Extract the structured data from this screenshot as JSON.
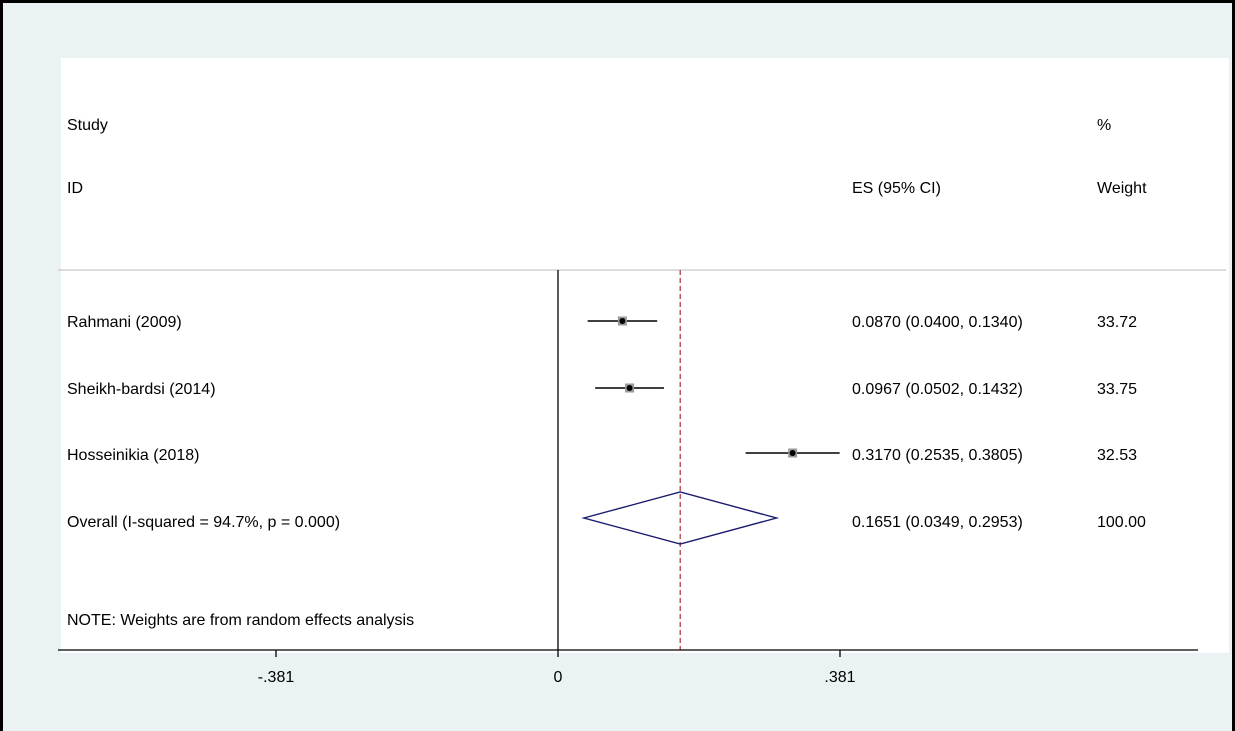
{
  "header": {
    "study_label": "Study",
    "id_label": "ID",
    "es_label": "ES (95% CI)",
    "pct_label": "%",
    "weight_label": "Weight"
  },
  "note": "NOTE: Weights are from random effects analysis",
  "colors": {
    "background": "#eaf2f3",
    "plot_background": "#ffffff",
    "reference_line": "#a83232",
    "diamond": "#1a1a6e",
    "ci_line": "#000000",
    "point": "#555555"
  },
  "chart_data": {
    "type": "forest",
    "xlim": [
      -0.6,
      1.133
    ],
    "xticks": [
      {
        "value": -0.381,
        "label": "-.381"
      },
      {
        "value": 0,
        "label": "0"
      },
      {
        "value": 0.381,
        "label": ".381"
      }
    ],
    "null_line": 0,
    "overall_line": 0.1651,
    "studies": [
      {
        "name": "Rahmani (2009)",
        "es": 0.087,
        "lo": 0.04,
        "hi": 0.134,
        "label": "0.0870 (0.0400, 0.1340)",
        "weight": "33.72"
      },
      {
        "name": "Sheikh-bardsi (2014)",
        "es": 0.0967,
        "lo": 0.0502,
        "hi": 0.1432,
        "label": "0.0967 (0.0502, 0.1432)",
        "weight": "33.75"
      },
      {
        "name": "Hosseinikia (2018)",
        "es": 0.317,
        "lo": 0.2535,
        "hi": 0.3805,
        "label": "0.3170 (0.2535, 0.3805)",
        "weight": "32.53"
      }
    ],
    "overall": {
      "name": "Overall  (I-squared = 94.7%, p = 0.000)",
      "es": 0.1651,
      "lo": 0.0349,
      "hi": 0.2953,
      "label": "0.1651 (0.0349, 0.2953)",
      "weight": "100.00"
    }
  }
}
